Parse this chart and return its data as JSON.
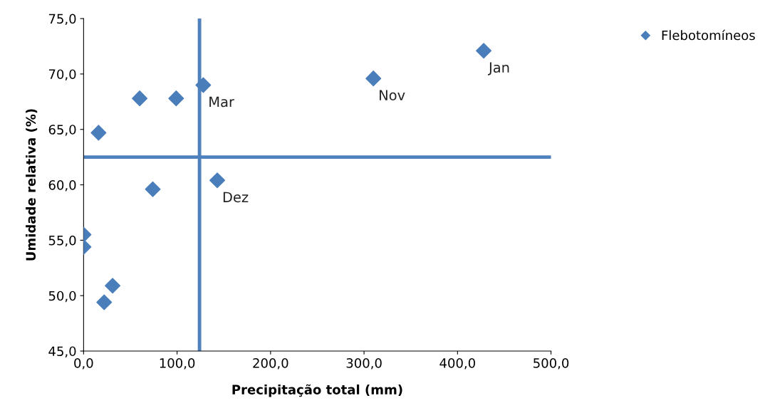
{
  "chart_data": {
    "type": "scatter",
    "xlabel": "Precipitação total (mm)",
    "ylabel": "Umidade relativa (%)",
    "series": [
      {
        "name": "Flebotomíneos",
        "color": "#4a7ebb",
        "x": [
          0,
          0,
          16,
          31,
          22,
          60,
          74,
          99,
          128,
          143,
          310,
          428
        ],
        "values": [
          55.5,
          54.4,
          64.7,
          50.9,
          49.4,
          67.8,
          59.6,
          67.8,
          69.0,
          60.4,
          69.6,
          72.1
        ]
      }
    ],
    "xlim": [
      0,
      500
    ],
    "xticks": [
      {
        "value": 0,
        "label": "0,0"
      },
      {
        "value": 100,
        "label": "100,0"
      },
      {
        "value": 200,
        "label": "200,0"
      },
      {
        "value": 300,
        "label": "300,0"
      },
      {
        "value": 400,
        "label": "400,0"
      },
      {
        "value": 500,
        "label": "500,0"
      }
    ],
    "ylim": [
      45,
      75
    ],
    "yticks": [
      {
        "value": 45,
        "label": "45,0"
      },
      {
        "value": 50,
        "label": "50,0"
      },
      {
        "value": 55,
        "label": "55,0"
      },
      {
        "value": 60,
        "label": "60,0"
      },
      {
        "value": 65,
        "label": "65,0"
      },
      {
        "value": 70,
        "label": "70,0"
      },
      {
        "value": 75,
        "label": "75,0"
      }
    ],
    "ref_lines": [
      {
        "axis": "x",
        "value": 124,
        "color": "#4f81bd"
      },
      {
        "axis": "y",
        "value": 62.5,
        "color": "#4f81bd"
      }
    ],
    "annotations": [
      {
        "text": "Mar",
        "x": 128,
        "y": 69.0
      },
      {
        "text": "Dez",
        "x": 143,
        "y": 60.4
      },
      {
        "text": "Nov",
        "x": 310,
        "y": 69.6
      },
      {
        "text": "Jan",
        "x": 428,
        "y": 72.1
      }
    ],
    "marker": "diamond",
    "grid": false,
    "legend": "top right"
  }
}
